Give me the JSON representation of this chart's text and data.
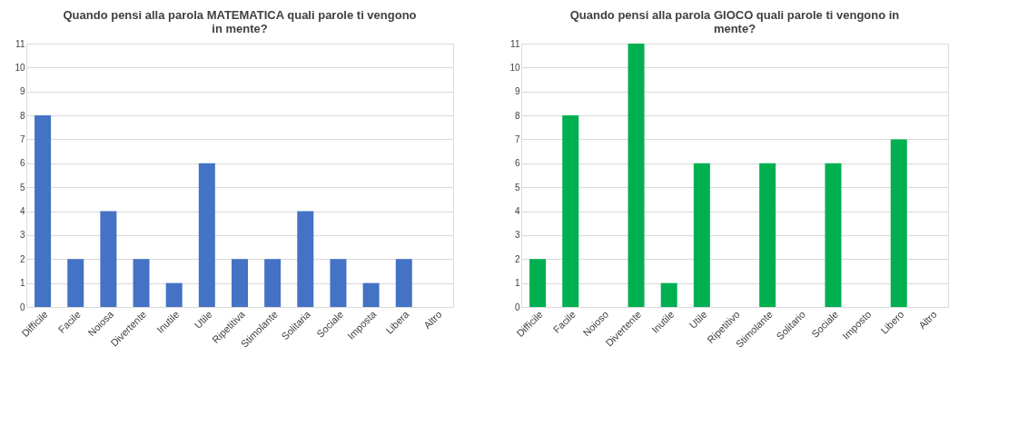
{
  "chart_data": [
    {
      "type": "bar",
      "title": "Quando pensi alla parola MATEMATICA quali parole ti vengono in mente?",
      "categories": [
        "Difficile",
        "Facile",
        "Noiosa",
        "Divertente",
        "Inutile",
        "Utile",
        "Ripetitiva",
        "Stimolante",
        "Solitaria",
        "Sociale",
        "Imposta",
        "Libera",
        "Altro"
      ],
      "values": [
        8,
        2,
        4,
        2,
        1,
        6,
        2,
        2,
        4,
        2,
        1,
        2,
        0
      ],
      "color": "#4472c4",
      "ylim": [
        0,
        11
      ],
      "yticks": [
        0,
        1,
        2,
        3,
        4,
        5,
        6,
        7,
        8,
        9,
        10,
        11
      ],
      "grid": "y"
    },
    {
      "type": "bar",
      "title": "Quando pensi alla parola GIOCO quali parole ti vengono in mente?",
      "categories": [
        "Difficile",
        "Facile",
        "Noioso",
        "Divertente",
        "Inutile",
        "Utile",
        "Ripetitivo",
        "Stimolante",
        "Solitario",
        "Sociale",
        "Imposto",
        "Libero",
        "Altro"
      ],
      "values": [
        2,
        8,
        0,
        11,
        1,
        6,
        0,
        6,
        0,
        6,
        0,
        7,
        0
      ],
      "color": "#00b050",
      "ylim": [
        0,
        11
      ],
      "yticks": [
        0,
        1,
        2,
        3,
        4,
        5,
        6,
        7,
        8,
        9,
        10,
        11
      ],
      "grid": "y"
    }
  ]
}
